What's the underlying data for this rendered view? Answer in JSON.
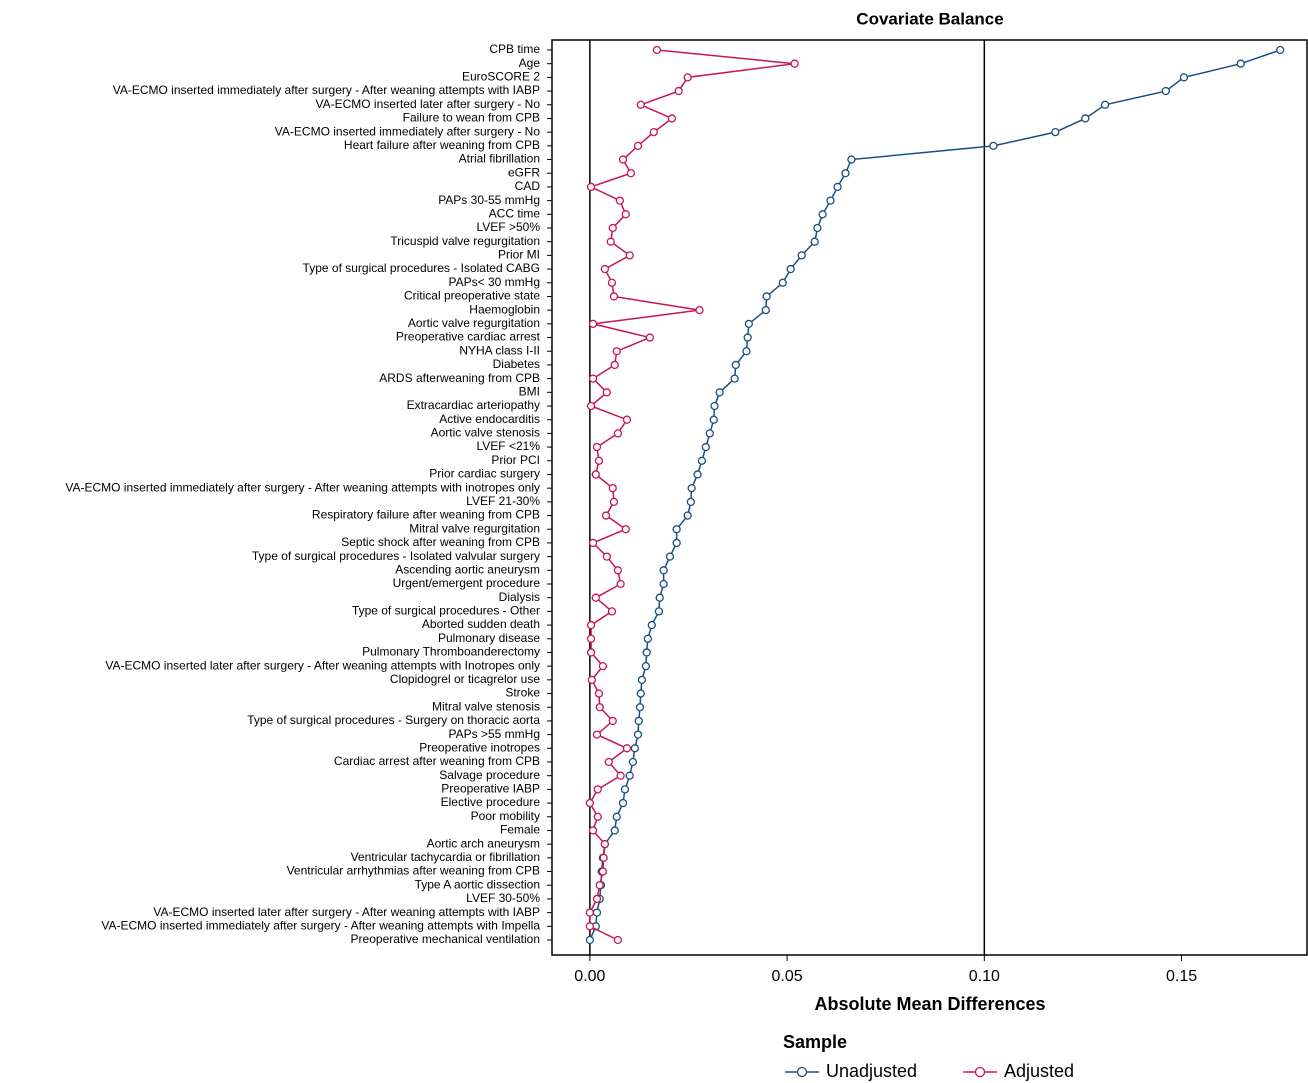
{
  "chart_data": {
    "type": "dotline",
    "title": "Covariate Balance",
    "x_label": "Absolute Mean Differences",
    "categories": [
      "CPB time",
      "Age",
      "EuroSCORE 2",
      "VA-ECMO inserted immediately after surgery - After weaning attempts with IABP",
      "VA-ECMO inserted later after surgery - No",
      "Failure to wean from CPB",
      "VA-ECMO inserted immediately after surgery - No",
      "Heart failure after weaning from CPB",
      "Atrial fibrillation",
      "eGFR",
      "CAD",
      "PAPs 30-55 mmHg",
      "ACC time",
      "LVEF >50%",
      "Tricuspid valve regurgitation",
      "Prior MI",
      "Type of surgical procedures - Isolated CABG",
      "PAPs< 30 mmHg",
      "Critical preoperative state",
      "Haemoglobin",
      "Aortic valve regurgitation",
      "Preoperative cardiac arrest",
      "NYHA class I-II",
      "Diabetes",
      "ARDS afterweaning from CPB",
      "BMI",
      "Extracardiac arteriopathy",
      "Active endocarditis",
      "Aortic valve stenosis",
      "LVEF <21%",
      "Prior PCI",
      "Prior cardiac surgery",
      "VA-ECMO inserted immediately after surgery - After weaning attempts with inotropes only",
      "LVEF 21-30%",
      "Respiratory failure after weaning from CPB",
      "Mitral valve regurgitation",
      "Septic shock after weaning from CPB",
      "Type of surgical procedures - Isolated valvular surgery",
      "Ascending aortic aneurysm",
      "Urgent/emergent procedure",
      "Dialysis",
      "Type of surgical procedures - Other",
      "Aborted sudden death",
      "Pulmonary disease",
      "Pulmonary Thromboanderectomy",
      "VA-ECMO inserted later after surgery - After weaning attempts with Inotropes only",
      "Clopidogrel or ticagrelor use",
      "Stroke",
      "Mitral valve stenosis",
      "Type of surgical procedures - Surgery on thoracic aorta",
      "PAPs >55 mmHg",
      "Preoperative inotropes",
      "Cardiac arrest after weaning from CPB",
      "Salvage procedure",
      "Preoperative IABP",
      "Elective procedure",
      "Poor mobility",
      "Female",
      "Aortic arch aneurysm",
      "Ventricular tachycardia or fibrillation",
      "Ventricular arrhythmias after weaning from CPB",
      "Type A aortic dissection",
      "LVEF 30-50%",
      "VA-ECMO inserted later after surgery - After weaning attempts with IABP",
      "VA-ECMO inserted immediately after surgery - After weaning attempts with Impella",
      "Preoperative mechanical ventilation"
    ],
    "series": [
      {
        "name": "Unadjusted",
        "color": "#1a4e80",
        "values": [
          0.175,
          0.165,
          0.1506,
          0.146,
          0.1306,
          0.1256,
          0.118,
          0.1023,
          0.0663,
          0.0648,
          0.0628,
          0.061,
          0.059,
          0.0577,
          0.057,
          0.0537,
          0.0509,
          0.0489,
          0.0448,
          0.0446,
          0.0403,
          0.04,
          0.0397,
          0.037,
          0.0367,
          0.0329,
          0.0316,
          0.0314,
          0.0304,
          0.0294,
          0.0284,
          0.0273,
          0.0258,
          0.0256,
          0.0248,
          0.022,
          0.022,
          0.0203,
          0.0187,
          0.0187,
          0.0177,
          0.0175,
          0.0157,
          0.0147,
          0.0144,
          0.0142,
          0.0132,
          0.0129,
          0.0127,
          0.0124,
          0.0122,
          0.0114,
          0.0109,
          0.0101,
          0.0089,
          0.0084,
          0.0068,
          0.0063,
          0.0038,
          0.0033,
          0.003,
          0.0028,
          0.0025,
          0.0018,
          0.0015,
          0.0
        ]
      },
      {
        "name": "Adjusted",
        "color": "#c8174a",
        "values": [
          0.017,
          0.0519,
          0.0248,
          0.0225,
          0.0129,
          0.0208,
          0.0162,
          0.0122,
          0.0084,
          0.0104,
          0.0003,
          0.0076,
          0.0091,
          0.0058,
          0.0053,
          0.0101,
          0.0038,
          0.0056,
          0.0061,
          0.0278,
          0.0008,
          0.0152,
          0.0068,
          0.0063,
          0.0008,
          0.0043,
          0.0003,
          0.0094,
          0.0071,
          0.0018,
          0.0023,
          0.0015,
          0.0058,
          0.0061,
          0.0041,
          0.0091,
          0.0008,
          0.0043,
          0.0071,
          0.0078,
          0.0015,
          0.0056,
          0.0003,
          0.0003,
          0.0003,
          0.0033,
          0.0005,
          0.0023,
          0.0025,
          0.0058,
          0.0018,
          0.0094,
          0.0048,
          0.0078,
          0.002,
          0.0,
          0.002,
          0.0008,
          0.0038,
          0.0035,
          0.0033,
          0.0025,
          0.0018,
          0.0,
          0.0,
          0.0071
        ]
      }
    ],
    "xlim": [
      -0.0096,
      0.1818
    ],
    "xticks": [
      {
        "value": 0,
        "label": "0.00"
      },
      {
        "value": 0.05,
        "label": "0.05"
      },
      {
        "value": 0.1,
        "label": "0.10"
      },
      {
        "value": 0.15,
        "label": "0.15"
      }
    ],
    "reference_lines": [
      0,
      0.1
    ],
    "legend_title": "Sample",
    "legend_position": "bottom"
  }
}
